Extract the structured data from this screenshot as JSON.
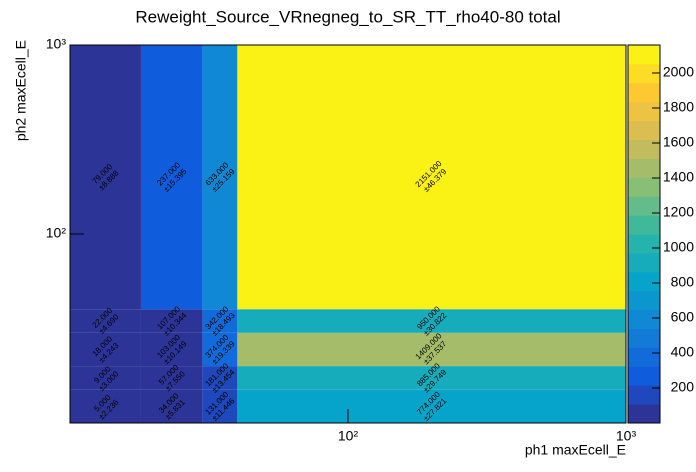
{
  "chart_data": {
    "type": "heatmap",
    "title": "Reweight_Source_VRnegneg_to_SR_TT_rho40-80 total",
    "x_label": "ph1 maxEcell_E",
    "y_label": "ph2 maxEcell_E",
    "x_edges": [
      10,
      18,
      30,
      40,
      1000
    ],
    "y_edges": [
      10,
      15,
      20,
      30,
      40,
      1000
    ],
    "log_x": true,
    "log_y": true,
    "xlim": [
      10,
      1000
    ],
    "ylim": [
      10,
      1000
    ],
    "xticks": [
      {
        "value": 100,
        "label": "10²"
      },
      {
        "value": 1000,
        "label": "10³"
      }
    ],
    "yticks": [
      {
        "value": 100,
        "label": "10²"
      },
      {
        "value": 1000,
        "label": "10³"
      }
    ],
    "zlim": [
      0,
      2160
    ],
    "zticks": [
      200,
      400,
      600,
      800,
      1000,
      1200,
      1400,
      1600,
      1800,
      2000
    ],
    "values": [
      [
        5,
        34,
        131,
        774
      ],
      [
        9,
        57,
        181,
        885
      ],
      [
        18,
        103,
        374,
        1409
      ],
      [
        22,
        107,
        342,
        950
      ],
      [
        79,
        237,
        633,
        2151
      ]
    ],
    "value_labels": [
      [
        "5.000",
        "34.000",
        "131.000",
        "774.000"
      ],
      [
        "9.000",
        "57.000",
        "181.000",
        "885.000"
      ],
      [
        "18.000",
        "103.000",
        "374.000",
        "1409.000"
      ],
      [
        "22.000",
        "107.000",
        "342.000",
        "950.000"
      ],
      [
        "79.000",
        "237.000",
        "633.000",
        "2151.000"
      ]
    ],
    "errors": [
      [
        2.236,
        5.831,
        11.446,
        27.821
      ],
      [
        3.0,
        7.55,
        13.454,
        29.749
      ],
      [
        4.243,
        10.149,
        19.339,
        37.537
      ],
      [
        4.69,
        10.344,
        18.493,
        30.822
      ],
      [
        8.888,
        15.395,
        25.159,
        46.379
      ]
    ],
    "error_labels": [
      [
        "±2.236",
        "±5.831",
        "±11.446",
        "±27.821"
      ],
      [
        "±3.000",
        "±7.550",
        "±13.454",
        "±29.749"
      ],
      [
        "±4.243",
        "±10.149",
        "±19.339",
        "±37.537"
      ],
      [
        "±4.690",
        "±10.344",
        "±18.493",
        "±30.822"
      ],
      [
        "±8.888",
        "±15.395",
        "±25.159",
        "±46.379"
      ]
    ]
  }
}
